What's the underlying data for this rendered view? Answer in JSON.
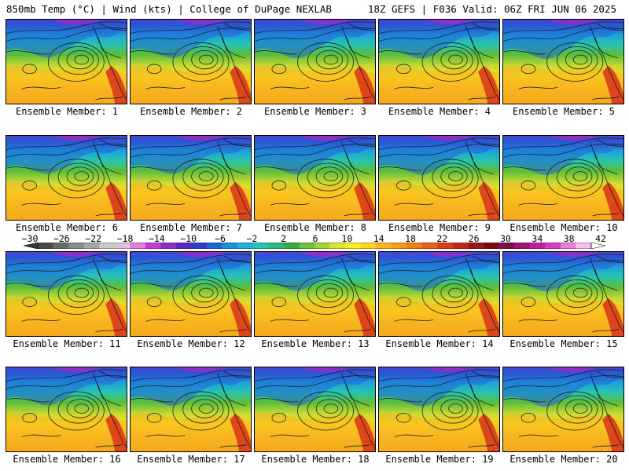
{
  "header": {
    "left": "850mb Temp (°C) | Wind (kts) | College of DuPage NEXLAB",
    "right": "18Z GEFS | F036 Valid: 06Z FRI JUN 06 2025"
  },
  "colorbar": {
    "ticks": [
      "−30",
      "−26",
      "−22",
      "−18",
      "−14",
      "−10",
      "−6",
      "−2",
      "2",
      "6",
      "10",
      "14",
      "18",
      "22",
      "26",
      "30",
      "34",
      "38",
      "42"
    ],
    "colors": [
      "#4a4a4a",
      "#6a6a6a",
      "#8a8a8a",
      "#a8a8a8",
      "#c9c9c9",
      "#e0c0e0",
      "#e27be2",
      "#c33cd8",
      "#8f2fc9",
      "#5a27c0",
      "#2c3fc6",
      "#1d66d8",
      "#1b8fe0",
      "#21b2d9",
      "#26c6b6",
      "#2dba7a",
      "#39ad45",
      "#6cc23a",
      "#a6d437",
      "#dde233",
      "#fbf01f",
      "#fed31f",
      "#f9b620",
      "#f59a1c",
      "#f1801a",
      "#eb5d19",
      "#e03b18",
      "#c82418",
      "#a01414",
      "#7d0a10",
      "#7a0d4a",
      "#a0107a",
      "#c21ca0",
      "#dc3cc3",
      "#f07ae0",
      "#f8c0f0"
    ]
  },
  "panels": [
    {
      "label": "Ensemble Member: 1"
    },
    {
      "label": "Ensemble Member: 2"
    },
    {
      "label": "Ensemble Member: 3"
    },
    {
      "label": "Ensemble Member: 4"
    },
    {
      "label": "Ensemble Member: 5"
    },
    {
      "label": "Ensemble Member: 6"
    },
    {
      "label": "Ensemble Member: 7"
    },
    {
      "label": "Ensemble Member: 8"
    },
    {
      "label": "Ensemble Member: 9"
    },
    {
      "label": "Ensemble Member: 10"
    },
    {
      "label": "Ensemble Member: 11"
    },
    {
      "label": "Ensemble Member: 12"
    },
    {
      "label": "Ensemble Member: 13"
    },
    {
      "label": "Ensemble Member: 14"
    },
    {
      "label": "Ensemble Member: 15"
    },
    {
      "label": "Ensemble Member: 16"
    },
    {
      "label": "Ensemble Member: 17"
    },
    {
      "label": "Ensemble Member: 18"
    },
    {
      "label": "Ensemble Member: 19"
    },
    {
      "label": "Ensemble Member: 20"
    }
  ]
}
